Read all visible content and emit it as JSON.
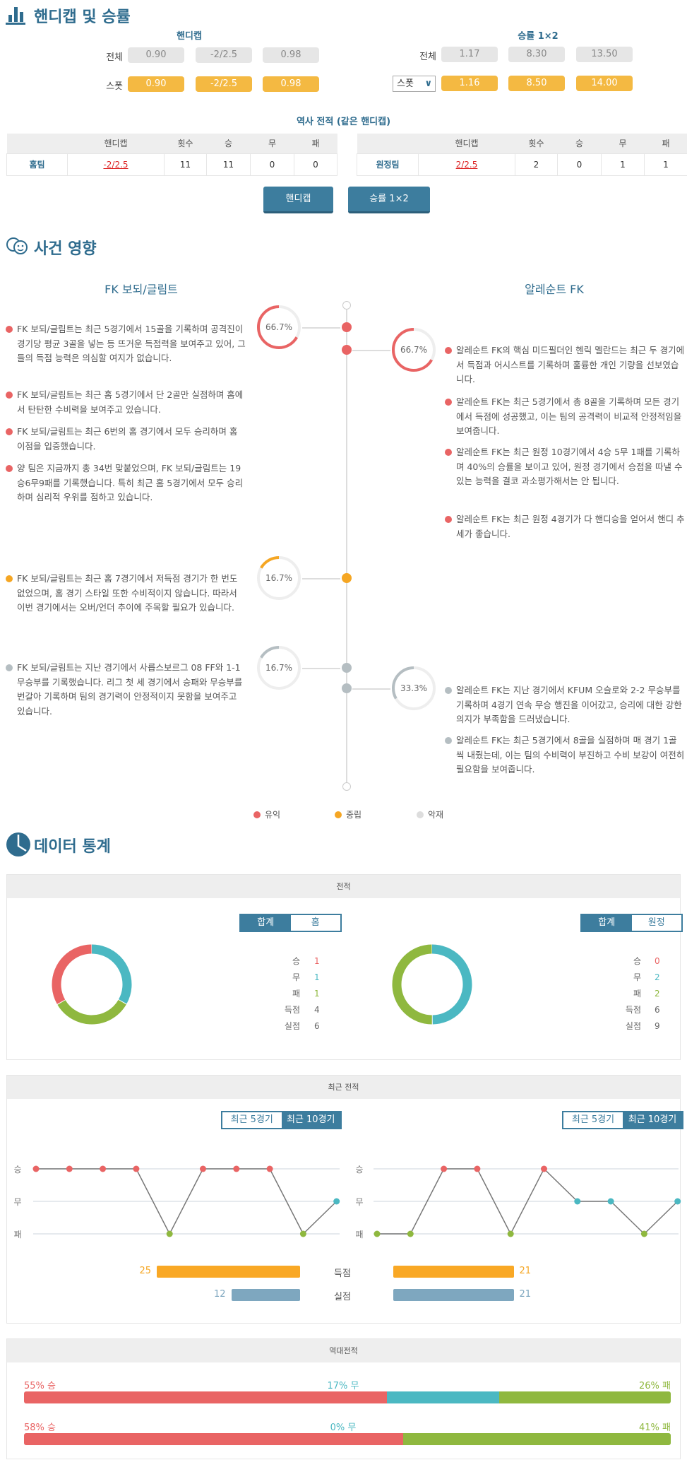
{
  "handicap_section": {
    "title": "핸디캡 및 승률",
    "handicap": {
      "header": "핸디캡",
      "rows": [
        {
          "label": "전체",
          "values": [
            "0.90",
            "-2/2.5",
            "0.98"
          ]
        },
        {
          "label": "스폿",
          "values": [
            "0.90",
            "-2/2.5",
            "0.98"
          ]
        }
      ]
    },
    "win_rate": {
      "header": "승률 1×2",
      "rows": [
        {
          "label": "전체",
          "values": [
            "1.17",
            "8.30",
            "13.50"
          ]
        },
        {
          "label": "스폿",
          "values": [
            "1.16",
            "8.50",
            "14.00"
          ]
        }
      ],
      "select_value": "스폿"
    },
    "history_title": "역사 전적 (같은 핸디캡)",
    "columns": [
      "",
      "핸디캡",
      "횟수",
      "승",
      "무",
      "패"
    ],
    "home_row": [
      "홈팀",
      "-2/2.5",
      "11",
      "11",
      "0",
      "0"
    ],
    "away_row": [
      "원정팀",
      "2/2.5",
      "2",
      "0",
      "1",
      "1"
    ],
    "buttons": [
      "핸디캡",
      "승률 1×2"
    ]
  },
  "impact": {
    "title": "사건 영향",
    "home_team": "FK 보되/글림트",
    "away_team": "알레순트 FK",
    "home_points": [
      {
        "type": "positive",
        "text": "FK 보되/글림트는 최근 5경기에서 15골을 기록하며 공격진이 경기당 평균 3골을 넣는 등 뜨거운 득점력을 보여주고 있어, 그들의 득점 능력은 의심할 여지가 없습니다."
      },
      {
        "type": "positive",
        "text": "FK 보되/글림트는 최근 홈 5경기에서 단 2골만 실점하며 홈에서 탄탄한 수비력을 보여주고 있습니다."
      },
      {
        "type": "positive",
        "text": "FK 보되/글림트는 최근 6번의 홈 경기에서 모두 승리하며 홈 이점을 입증했습니다."
      },
      {
        "type": "positive",
        "text": "양 팀은 지금까지 총 34번 맞붙었으며, FK 보되/글림트는 19승6무9패를 기록했습니다. 특히 최근 홈 5경기에서 모두 승리하며 심리적 우위를 점하고 있습니다."
      },
      {
        "type": "neutral",
        "text": "FK 보되/글림트는 최근 홈 7경기에서 저득점 경기가 한 번도 없었으며, 홈 경기 스타일 또한 수비적이지 않습니다. 따라서 이번 경기에서는 오버/언더 추이에 주목할 필요가 있습니다."
      },
      {
        "type": "negative",
        "text": "FK 보되/글림트는 지난 경기에서 사릅스보르그 08 FF와 1-1 무승부를 기록했습니다. 리그 첫 세 경기에서 승패와 무승부를 번갈아 기록하며 팀의 경기력이 안정적이지 못함을 보여주고 있습니다."
      }
    ],
    "away_points": [
      {
        "type": "positive",
        "text": "알레순트 FK의 핵심 미드필더인 헨릭 멜란드는 최근 두 경기에서 득점과 어시스트를 기록하며 훌륭한 개인 기량을 선보였습니다."
      },
      {
        "type": "positive",
        "text": "알레순트 FK는 최근 5경기에서 총 8골을 기록하며 모든 경기에서 득점에 성공했고, 이는 팀의 공격력이 비교적 안정적임을 보여줍니다."
      },
      {
        "type": "positive",
        "text": "알레순트 FK는 최근 원정 10경기에서 4승 5무 1패를 기록하며 40%의 승률을 보이고 있어, 원정 경기에서 승점을 따낼 수 있는 능력을 결코 과소평가해서는 안 됩니다."
      },
      {
        "type": "positive",
        "text": "알레순트 FK는 최근 원정 4경기가 다 핸디승을 얻어서 핸디 추세가 좋습니다."
      },
      {
        "type": "negative",
        "text": "알레순트 FK는 지난 경기에서 KFUM 오슬로와 2-2 무승부를 기록하며 4경기 연속 무승 행진을 이어갔고, 승리에 대한 강한 의지가 부족함을 드러냈습니다."
      },
      {
        "type": "negative",
        "text": "알레순트 FK는 최근 5경기에서 8골을 실점하며 매 경기 1골씩 내줬는데, 이는 팀의 수비력이 부진하고 수비 보강이 여전히 필요함을 보여줍니다."
      }
    ],
    "markers": [
      {
        "side": "home",
        "type": "positive",
        "pct": "66.7%",
        "value": 66.7
      },
      {
        "side": "away",
        "type": "positive",
        "pct": "66.7%",
        "value": 66.7
      },
      {
        "side": "home",
        "type": "neutral",
        "pct": "16.7%",
        "value": 16.7
      },
      {
        "side": "home",
        "type": "negative",
        "pct": "16.7%",
        "value": 16.7
      },
      {
        "side": "away",
        "type": "negative",
        "pct": "33.3%",
        "value": 33.3
      }
    ],
    "legend": [
      "유익",
      "중립",
      "악재"
    ]
  },
  "colors": {
    "positive": "#e96464",
    "neutral": "#f5a623",
    "negative": "#b5bec2",
    "win": "#e96464",
    "draw": "#4bb8c2",
    "loss": "#8fb83f",
    "accent": "#3d7d9e",
    "goals_for": "#f9a825",
    "goals_against": "#7ea7bf"
  },
  "stats": {
    "title": "데이터 통계",
    "record": {
      "header": "전적",
      "home": {
        "toggle": [
          "합계",
          "홈"
        ],
        "labels": [
          "승",
          "무",
          "패",
          "득점",
          "실점"
        ],
        "values": [
          "1",
          "1",
          "1",
          "4",
          "6"
        ]
      },
      "away": {
        "toggle": [
          "합계",
          "원정"
        ],
        "labels": [
          "승",
          "무",
          "패",
          "득점",
          "실점"
        ],
        "values": [
          "0",
          "2",
          "2",
          "6",
          "9"
        ]
      }
    },
    "recent": {
      "header": "최근 전적",
      "toggle": [
        "최근 5경기",
        "최근 10경기"
      ],
      "y_labels": [
        "승",
        "무",
        "패"
      ],
      "home_results": [
        "W",
        "W",
        "W",
        "W",
        "L",
        "W",
        "W",
        "W",
        "L",
        "D"
      ],
      "away_results": [
        "L",
        "L",
        "W",
        "W",
        "L",
        "W",
        "D",
        "D",
        "L",
        "D"
      ],
      "goals_label": "득점",
      "conceded_label": "실점",
      "home_goals": 25,
      "home_conceded": 12,
      "away_goals": 21,
      "away_conceded": 21
    },
    "h2h": {
      "header": "역대전적",
      "rows": [
        {
          "win": 55,
          "draw": 17,
          "loss": 26,
          "win_label": "55% 승",
          "draw_label": "17% 무",
          "loss_label": "26% 패"
        },
        {
          "win": 58,
          "draw": 0,
          "loss": 41,
          "win_label": "58% 승",
          "draw_label": "0% 무",
          "loss_label": "41% 패"
        }
      ]
    }
  }
}
